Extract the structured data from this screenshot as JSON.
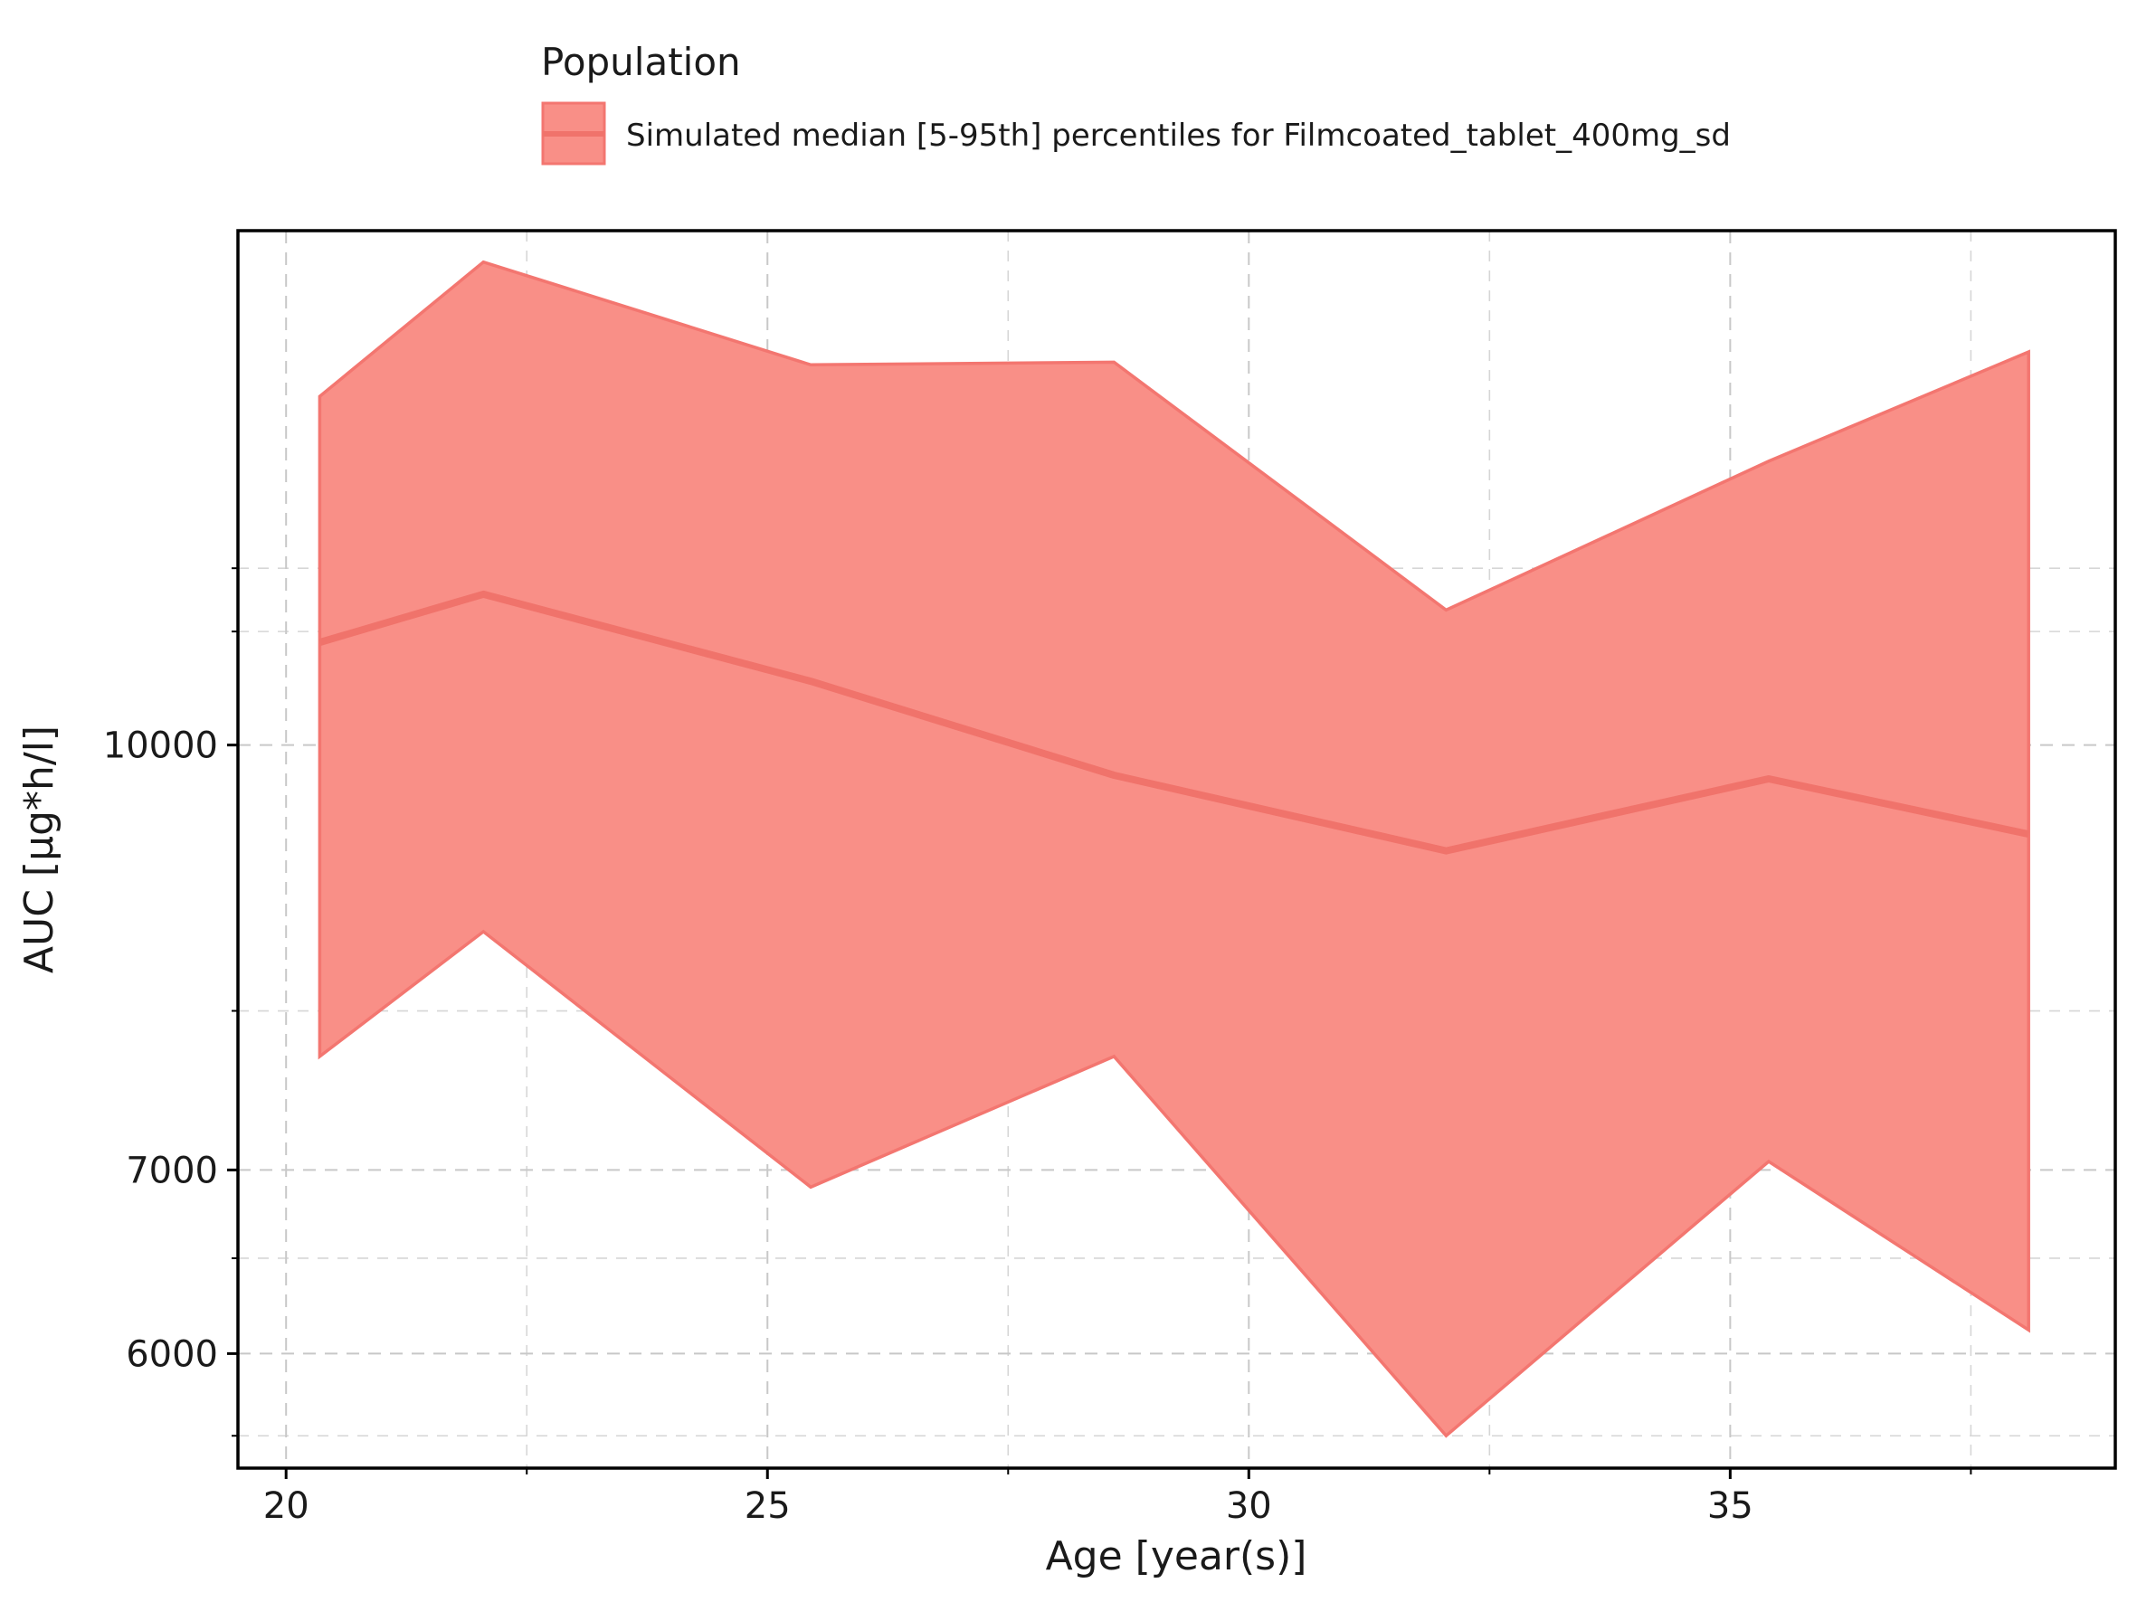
{
  "chart_data": {
    "type": "area",
    "title": "",
    "xlabel": "Age [year(s)]",
    "ylabel": "AUC [µg*h/l]",
    "y_scale": "log",
    "xlim": [
      19.5,
      39.0
    ],
    "ylim": [
      5450,
      15400
    ],
    "x_ticks": [
      20,
      25,
      30,
      35
    ],
    "x_minor_ticks": [
      22.5,
      27.5,
      32.5,
      37.5
    ],
    "y_ticks": [
      6000,
      7000,
      10000
    ],
    "y_minor_ticks": [
      5600,
      6500,
      8000,
      11000,
      11600
    ],
    "grid": true,
    "legend": {
      "title": "Population",
      "placement": "top",
      "entries": [
        "Simulated median [5-95th] percentiles for Filmcoated_tablet_400mg_sd"
      ]
    },
    "colors": {
      "band_fill": "#f98f87",
      "band_edge": "#f37670",
      "median_line": "#f0736b"
    },
    "series": [
      {
        "name": "Simulated median [5-95th] percentiles for Filmcoated_tablet_400mg_sd",
        "x": [
          20.35,
          22.05,
          25.45,
          28.6,
          32.05,
          35.4,
          38.1
        ],
        "median": [
          10900,
          11350,
          10550,
          9750,
          9150,
          9720,
          9280
        ],
        "p5": [
          7700,
          8550,
          6900,
          7700,
          5600,
          7050,
          6120
        ],
        "p95": [
          13400,
          15000,
          13760,
          13790,
          11200,
          12690,
          13910
        ]
      }
    ]
  }
}
